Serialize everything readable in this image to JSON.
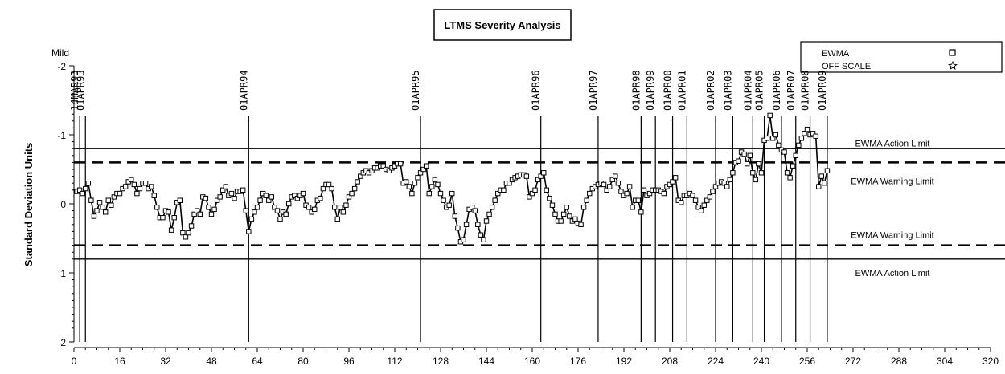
{
  "chart_data": {
    "type": "line",
    "title": "LTMS Severity Analysis",
    "ylabel": "Standard Deviation Units",
    "y_top_annotation": "Mild",
    "xlim": [
      0,
      320
    ],
    "ylim": [
      -2,
      2
    ],
    "y_axis_inverted": true,
    "x_ticks": [
      0,
      16,
      32,
      48,
      64,
      80,
      96,
      112,
      128,
      144,
      160,
      176,
      192,
      208,
      224,
      240,
      256,
      272,
      288,
      304,
      320
    ],
    "y_ticks": [
      -2,
      -1,
      0,
      1,
      2
    ],
    "y_tick_labels": [
      "-2",
      "-1",
      "0",
      "1",
      "2"
    ],
    "reference_lines": [
      {
        "label": "EWMA Action Limit",
        "y": -0.8,
        "style": "solid"
      },
      {
        "label": "EWMA Warning Limit",
        "y": -0.6,
        "style": "dashed"
      },
      {
        "label": "EWMA Warning Limit",
        "y": 0.6,
        "style": "dashed"
      },
      {
        "label": "EWMA Action Limit",
        "y": 0.8,
        "style": "solid"
      }
    ],
    "date_markers": [
      {
        "label": "14MAR93",
        "x": 2
      },
      {
        "label": "01APR93",
        "x": 4
      },
      {
        "label": "01APR94",
        "x": 61
      },
      {
        "label": "01APR95",
        "x": 121
      },
      {
        "label": "01APR96",
        "x": 163
      },
      {
        "label": "01APR97",
        "x": 183
      },
      {
        "label": "01APR98",
        "x": 198
      },
      {
        "label": "01APR99",
        "x": 203
      },
      {
        "label": "01APR00",
        "x": 209
      },
      {
        "label": "01APR01",
        "x": 214
      },
      {
        "label": "01APR02",
        "x": 224
      },
      {
        "label": "01APR03",
        "x": 230
      },
      {
        "label": "01APR04",
        "x": 237
      },
      {
        "label": "01APR05",
        "x": 241
      },
      {
        "label": "01APR06",
        "x": 247
      },
      {
        "label": "01APR07",
        "x": 252
      },
      {
        "label": "01APR08",
        "x": 257
      },
      {
        "label": "01APR09",
        "x": 263
      }
    ],
    "legend": {
      "placement": "top-right",
      "entries": [
        {
          "label": "EWMA",
          "marker": "square"
        },
        {
          "label": "OFF SCALE",
          "marker": "star"
        }
      ]
    },
    "series": [
      {
        "name": "EWMA",
        "x": [
          1,
          2,
          3,
          4,
          5,
          6,
          7,
          8,
          9,
          10,
          11,
          12,
          13,
          14,
          15,
          16,
          17,
          18,
          19,
          20,
          21,
          22,
          23,
          24,
          25,
          26,
          27,
          28,
          29,
          30,
          31,
          32,
          33,
          34,
          35,
          36,
          37,
          38,
          39,
          40,
          41,
          42,
          43,
          44,
          45,
          46,
          47,
          48,
          49,
          50,
          51,
          52,
          53,
          54,
          55,
          56,
          57,
          58,
          59,
          60,
          61,
          62,
          63,
          64,
          65,
          66,
          67,
          68,
          69,
          70,
          71,
          72,
          73,
          74,
          75,
          76,
          77,
          78,
          79,
          80,
          81,
          82,
          83,
          84,
          85,
          86,
          87,
          88,
          89,
          90,
          91,
          92,
          93,
          94,
          95,
          96,
          97,
          98,
          99,
          100,
          101,
          102,
          103,
          104,
          105,
          106,
          107,
          108,
          109,
          110,
          111,
          112,
          113,
          114,
          115,
          116,
          117,
          118,
          119,
          120,
          121,
          122,
          123,
          124,
          125,
          126,
          127,
          128,
          129,
          130,
          131,
          132,
          133,
          134,
          135,
          136,
          137,
          138,
          139,
          140,
          141,
          142,
          143,
          144,
          145,
          146,
          147,
          148,
          149,
          150,
          151,
          152,
          153,
          154,
          155,
          156,
          157,
          158,
          159,
          160,
          161,
          162,
          163,
          164,
          165,
          166,
          167,
          168,
          169,
          170,
          171,
          172,
          173,
          174,
          175,
          176,
          177,
          178,
          179,
          180,
          181,
          182,
          183,
          184,
          185,
          186,
          187,
          188,
          189,
          190,
          191,
          192,
          193,
          194,
          195,
          196,
          197,
          198,
          199,
          200,
          201,
          202,
          203,
          204,
          205,
          206,
          207,
          208,
          209,
          210,
          211,
          212,
          213,
          214,
          215,
          216,
          217,
          218,
          219,
          220,
          221,
          222,
          223,
          224,
          225,
          226,
          227,
          228,
          229,
          230,
          231,
          232,
          233,
          234,
          235,
          236,
          237,
          238,
          239,
          240,
          241,
          242,
          243,
          244,
          245,
          246,
          247,
          248,
          249,
          250,
          251,
          252,
          253,
          254,
          255,
          256,
          257,
          258,
          259,
          260,
          261,
          262,
          263
        ],
        "y": [
          -0.18,
          -0.2,
          -0.15,
          -0.22,
          -0.3,
          -0.05,
          0.18,
          0.1,
          -0.02,
          0.05,
          0.12,
          -0.05,
          0.02,
          -0.1,
          -0.15,
          -0.15,
          -0.22,
          -0.25,
          -0.32,
          -0.35,
          -0.28,
          -0.15,
          -0.22,
          -0.3,
          -0.3,
          -0.22,
          -0.25,
          -0.12,
          0.05,
          0.2,
          0.2,
          0.1,
          0.12,
          0.38,
          0.2,
          -0.02,
          -0.05,
          0.42,
          0.48,
          0.42,
          0.32,
          0.15,
          0.1,
          0.15,
          -0.1,
          -0.08,
          0.05,
          0.15,
          0.08,
          -0.05,
          -0.1,
          -0.2,
          -0.25,
          -0.12,
          -0.15,
          -0.08,
          -0.18,
          -0.18,
          -0.2,
          0.1,
          0.4,
          0.22,
          0.12,
          0.05,
          -0.05,
          -0.15,
          -0.12,
          -0.05,
          -0.1,
          0.05,
          0.1,
          0.22,
          0.12,
          0.15,
          0.0,
          -0.1,
          -0.12,
          -0.08,
          -0.12,
          -0.15,
          0.02,
          0.05,
          0.12,
          0.08,
          -0.05,
          -0.08,
          -0.22,
          -0.28,
          -0.28,
          -0.22,
          0.05,
          0.22,
          0.05,
          0.12,
          0.02,
          -0.1,
          -0.15,
          -0.22,
          -0.32,
          -0.4,
          -0.45,
          -0.48,
          -0.45,
          -0.48,
          -0.52,
          -0.52,
          -0.55,
          -0.55,
          -0.5,
          -0.48,
          -0.52,
          -0.55,
          -0.58,
          -0.58,
          -0.3,
          -0.32,
          -0.25,
          -0.15,
          -0.3,
          -0.38,
          -0.45,
          -0.5,
          -0.55,
          -0.15,
          -0.25,
          -0.35,
          -0.28,
          -0.15,
          -0.05,
          0.05,
          0.02,
          -0.15,
          0.18,
          0.35,
          0.55,
          0.52,
          0.3,
          0.08,
          0.05,
          0.1,
          0.3,
          0.45,
          0.52,
          0.25,
          0.15,
          0.05,
          -0.05,
          -0.15,
          -0.2,
          -0.2,
          -0.3,
          -0.3,
          -0.35,
          -0.38,
          -0.4,
          -0.42,
          -0.42,
          -0.4,
          -0.1,
          -0.15,
          -0.2,
          -0.35,
          -0.4,
          -0.45,
          -0.2,
          -0.08,
          0.02,
          0.15,
          0.25,
          0.25,
          0.15,
          0.05,
          0.18,
          0.25,
          0.22,
          0.28,
          0.3,
          0.05,
          -0.05,
          -0.15,
          -0.22,
          -0.25,
          -0.28,
          -0.3,
          -0.28,
          -0.2,
          -0.25,
          -0.35,
          -0.4,
          -0.3,
          -0.18,
          -0.12,
          -0.15,
          -0.25,
          0.05,
          -0.05,
          -0.05,
          0.12,
          -0.2,
          -0.12,
          -0.15,
          -0.2,
          -0.2,
          -0.2,
          -0.18,
          -0.15,
          -0.25,
          -0.28,
          -0.32,
          -0.38,
          -0.05,
          -0.02,
          -0.12,
          -0.12,
          -0.15,
          -0.12,
          -0.05,
          0.05,
          0.1,
          0.02,
          -0.05,
          -0.1,
          -0.18,
          -0.25,
          -0.3,
          -0.32,
          -0.3,
          -0.25,
          -0.35,
          -0.45,
          -0.6,
          -0.62,
          -0.75,
          -0.72,
          -0.58,
          -0.7,
          -0.45,
          -0.35,
          -0.58,
          -0.45,
          -0.92,
          -0.95,
          -1.28,
          -0.95,
          -1.0,
          -0.85,
          -0.78,
          -0.75,
          -0.45,
          -0.38,
          -0.55,
          -0.7,
          -0.85,
          -0.95,
          -1.02,
          -1.08,
          -1.0,
          -1.02,
          -0.98,
          -0.25,
          -0.4,
          -0.3,
          -0.48
        ]
      }
    ]
  }
}
